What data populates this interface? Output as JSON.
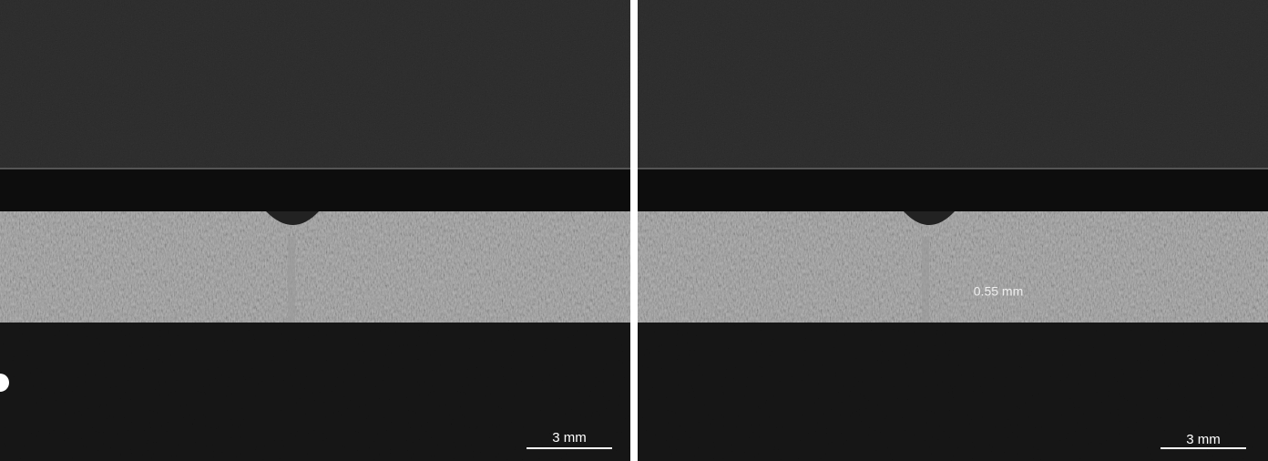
{
  "panels": [
    {
      "scale_bar": "3 mm"
    },
    {
      "scale_bar": "3 mm",
      "annotation": "0.55 mm"
    }
  ]
}
